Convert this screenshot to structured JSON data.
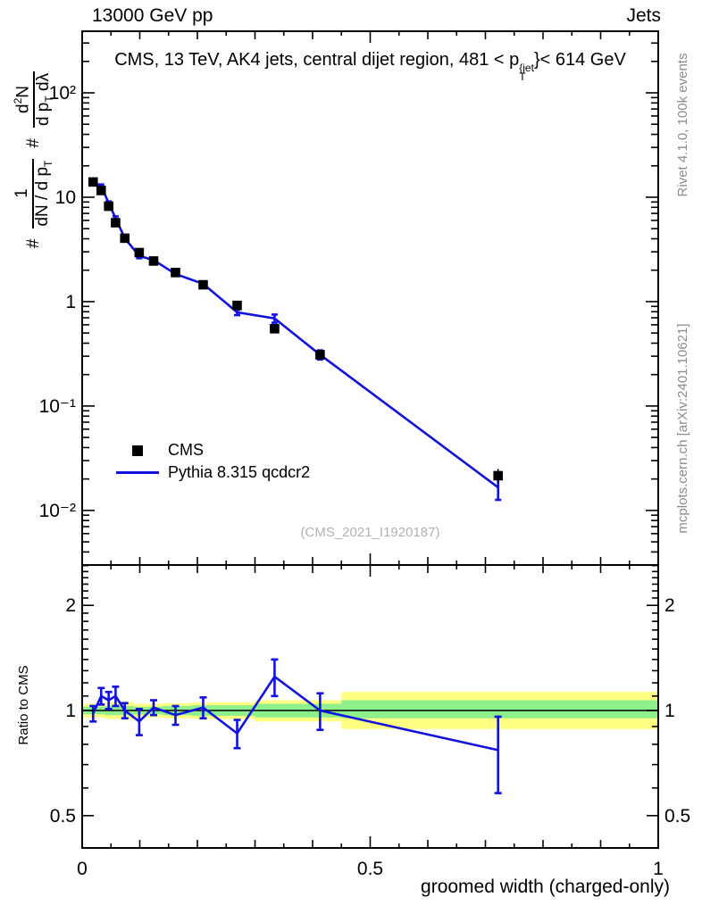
{
  "header": {
    "left": "13000 GeV pp",
    "right": "Jets"
  },
  "title": {
    "pre": "CMS, 13 TeV, AK4 jets, central dijet region, 481 < p",
    "sup": "{jet",
    "sub": "T",
    "post": "}< 614 GeV"
  },
  "ylabel": {
    "hash1": "#",
    "f1_num": "1",
    "f1_den": "dN / d p",
    "f1_den_sub": "T",
    "hash2": "#",
    "f2_num_a": "d",
    "f2_num_sup": "2",
    "f2_num_b": "N",
    "f2_den_a": "d p",
    "f2_den_sub": "T",
    "f2_den_b": "dλ"
  },
  "side_notes": {
    "rivet": "Rivet 4.1.0,  100k events",
    "mcplots": "mcplots.cern.ch [arXiv:2401.10621]"
  },
  "legend": [
    {
      "label": "CMS",
      "marker": "square"
    },
    {
      "label": "Pythia 8.315 qcdcr2",
      "marker": "line"
    }
  ],
  "watermark": "(CMS_2021_I1920187)",
  "ratio_ylabel": "Ratio to CMS",
  "xlabel": "groomed width (charged-only)",
  "colors": {
    "data": "#000000",
    "model": "#1212e0",
    "band_inner_green": "#8df08d",
    "band_outer_yellow": "#ffff82",
    "watermark_gray": "#b2b2b2",
    "side_note_gray": "#8c8c8c"
  },
  "chart_data": [
    {
      "id": "main",
      "type": "line",
      "title": "CMS, 13 TeV, AK4 jets, central dijet region, 481 < pT{jet} < 614 GeV",
      "xlabel": "groomed width (charged-only)",
      "ylabel": "# 1/(dN/dpT) # d2N/(dpT dlambda)",
      "xlim": [
        0,
        1
      ],
      "ylim": [
        0.003,
        389
      ],
      "yscale": "log",
      "grid": false,
      "legend_position": "left-middle",
      "x": [
        0.019,
        0.033,
        0.046,
        0.058,
        0.074,
        0.099,
        0.124,
        0.162,
        0.21,
        0.269,
        0.334,
        0.413,
        0.722
      ],
      "series": [
        {
          "name": "CMS",
          "type": "scatter",
          "marker": "square",
          "values": [
            14.0,
            11.6,
            8.2,
            5.7,
            4.05,
            2.95,
            2.45,
            1.9,
            1.45,
            0.92,
            0.55,
            0.31,
            0.0215
          ],
          "yerr_rel": [
            0.04,
            0.035,
            0.035,
            0.035,
            0.035,
            0.04,
            0.04,
            0.045,
            0.05,
            0.055,
            0.065,
            0.08,
            0.16
          ]
        },
        {
          "name": "Pythia 8.315 qcdcr2",
          "type": "line",
          "marker": "tick",
          "values": [
            13.7,
            12.8,
            8.8,
            6.3,
            4.05,
            2.74,
            2.5,
            1.84,
            1.48,
            0.79,
            0.69,
            0.31,
            0.0166
          ],
          "yerr_rel": [
            0.03,
            0.035,
            0.035,
            0.04,
            0.04,
            0.05,
            0.04,
            0.045,
            0.05,
            0.06,
            0.09,
            0.1,
            0.24
          ]
        }
      ],
      "yticks": [
        {
          "v": 100,
          "label": "10²"
        },
        {
          "v": 10,
          "label": "10"
        },
        {
          "v": 1,
          "label": "1"
        },
        {
          "v": 0.1,
          "label": "10⁻¹"
        },
        {
          "v": 0.01,
          "label": "10⁻²"
        }
      ],
      "xticks": [
        {
          "v": 0,
          "label": "0"
        },
        {
          "v": 0.5,
          "label": "0.5"
        },
        {
          "v": 1,
          "label": "1"
        }
      ]
    },
    {
      "id": "ratio",
      "type": "line",
      "ylabel": "Ratio to CMS",
      "xlim": [
        0,
        1
      ],
      "ylim": [
        0.404,
        2.61
      ],
      "yscale": "log",
      "x": [
        0.019,
        0.033,
        0.046,
        0.058,
        0.074,
        0.099,
        0.124,
        0.162,
        0.21,
        0.269,
        0.334,
        0.413,
        0.722
      ],
      "values": [
        0.98,
        1.1,
        1.07,
        1.1,
        1.0,
        0.93,
        1.02,
        0.97,
        1.02,
        0.86,
        1.25,
        1.0,
        0.77
      ],
      "errors": [
        0.05,
        0.06,
        0.06,
        0.07,
        0.05,
        0.08,
        0.05,
        0.06,
        0.07,
        0.08,
        0.15,
        0.12,
        0.19
      ],
      "reference_line": 1,
      "bands_yellow": [
        [
          0.0,
          0.04,
          0.955,
          1.045
        ],
        [
          0.04,
          0.09,
          0.945,
          1.06
        ],
        [
          0.09,
          0.14,
          0.955,
          1.045
        ],
        [
          0.14,
          0.19,
          0.95,
          1.05
        ],
        [
          0.19,
          0.3,
          0.945,
          1.055
        ],
        [
          0.3,
          0.45,
          0.93,
          1.07
        ],
        [
          0.45,
          1.0,
          0.885,
          1.13
        ]
      ],
      "bands_green": [
        [
          0.0,
          0.04,
          0.975,
          1.025
        ],
        [
          0.04,
          0.09,
          0.97,
          1.03
        ],
        [
          0.09,
          0.14,
          0.975,
          1.025
        ],
        [
          0.14,
          0.19,
          0.97,
          1.03
        ],
        [
          0.19,
          0.3,
          0.965,
          1.035
        ],
        [
          0.3,
          0.45,
          0.955,
          1.045
        ],
        [
          0.45,
          1.0,
          0.95,
          1.07
        ]
      ],
      "yticks": [
        {
          "v": 2,
          "label": "2"
        },
        {
          "v": 1,
          "label": "1"
        },
        {
          "v": 0.5,
          "label": "0.5"
        }
      ],
      "xticks": [
        {
          "v": 0,
          "label": "0"
        },
        {
          "v": 0.5,
          "label": "0.5"
        },
        {
          "v": 1,
          "label": "1"
        }
      ]
    }
  ]
}
